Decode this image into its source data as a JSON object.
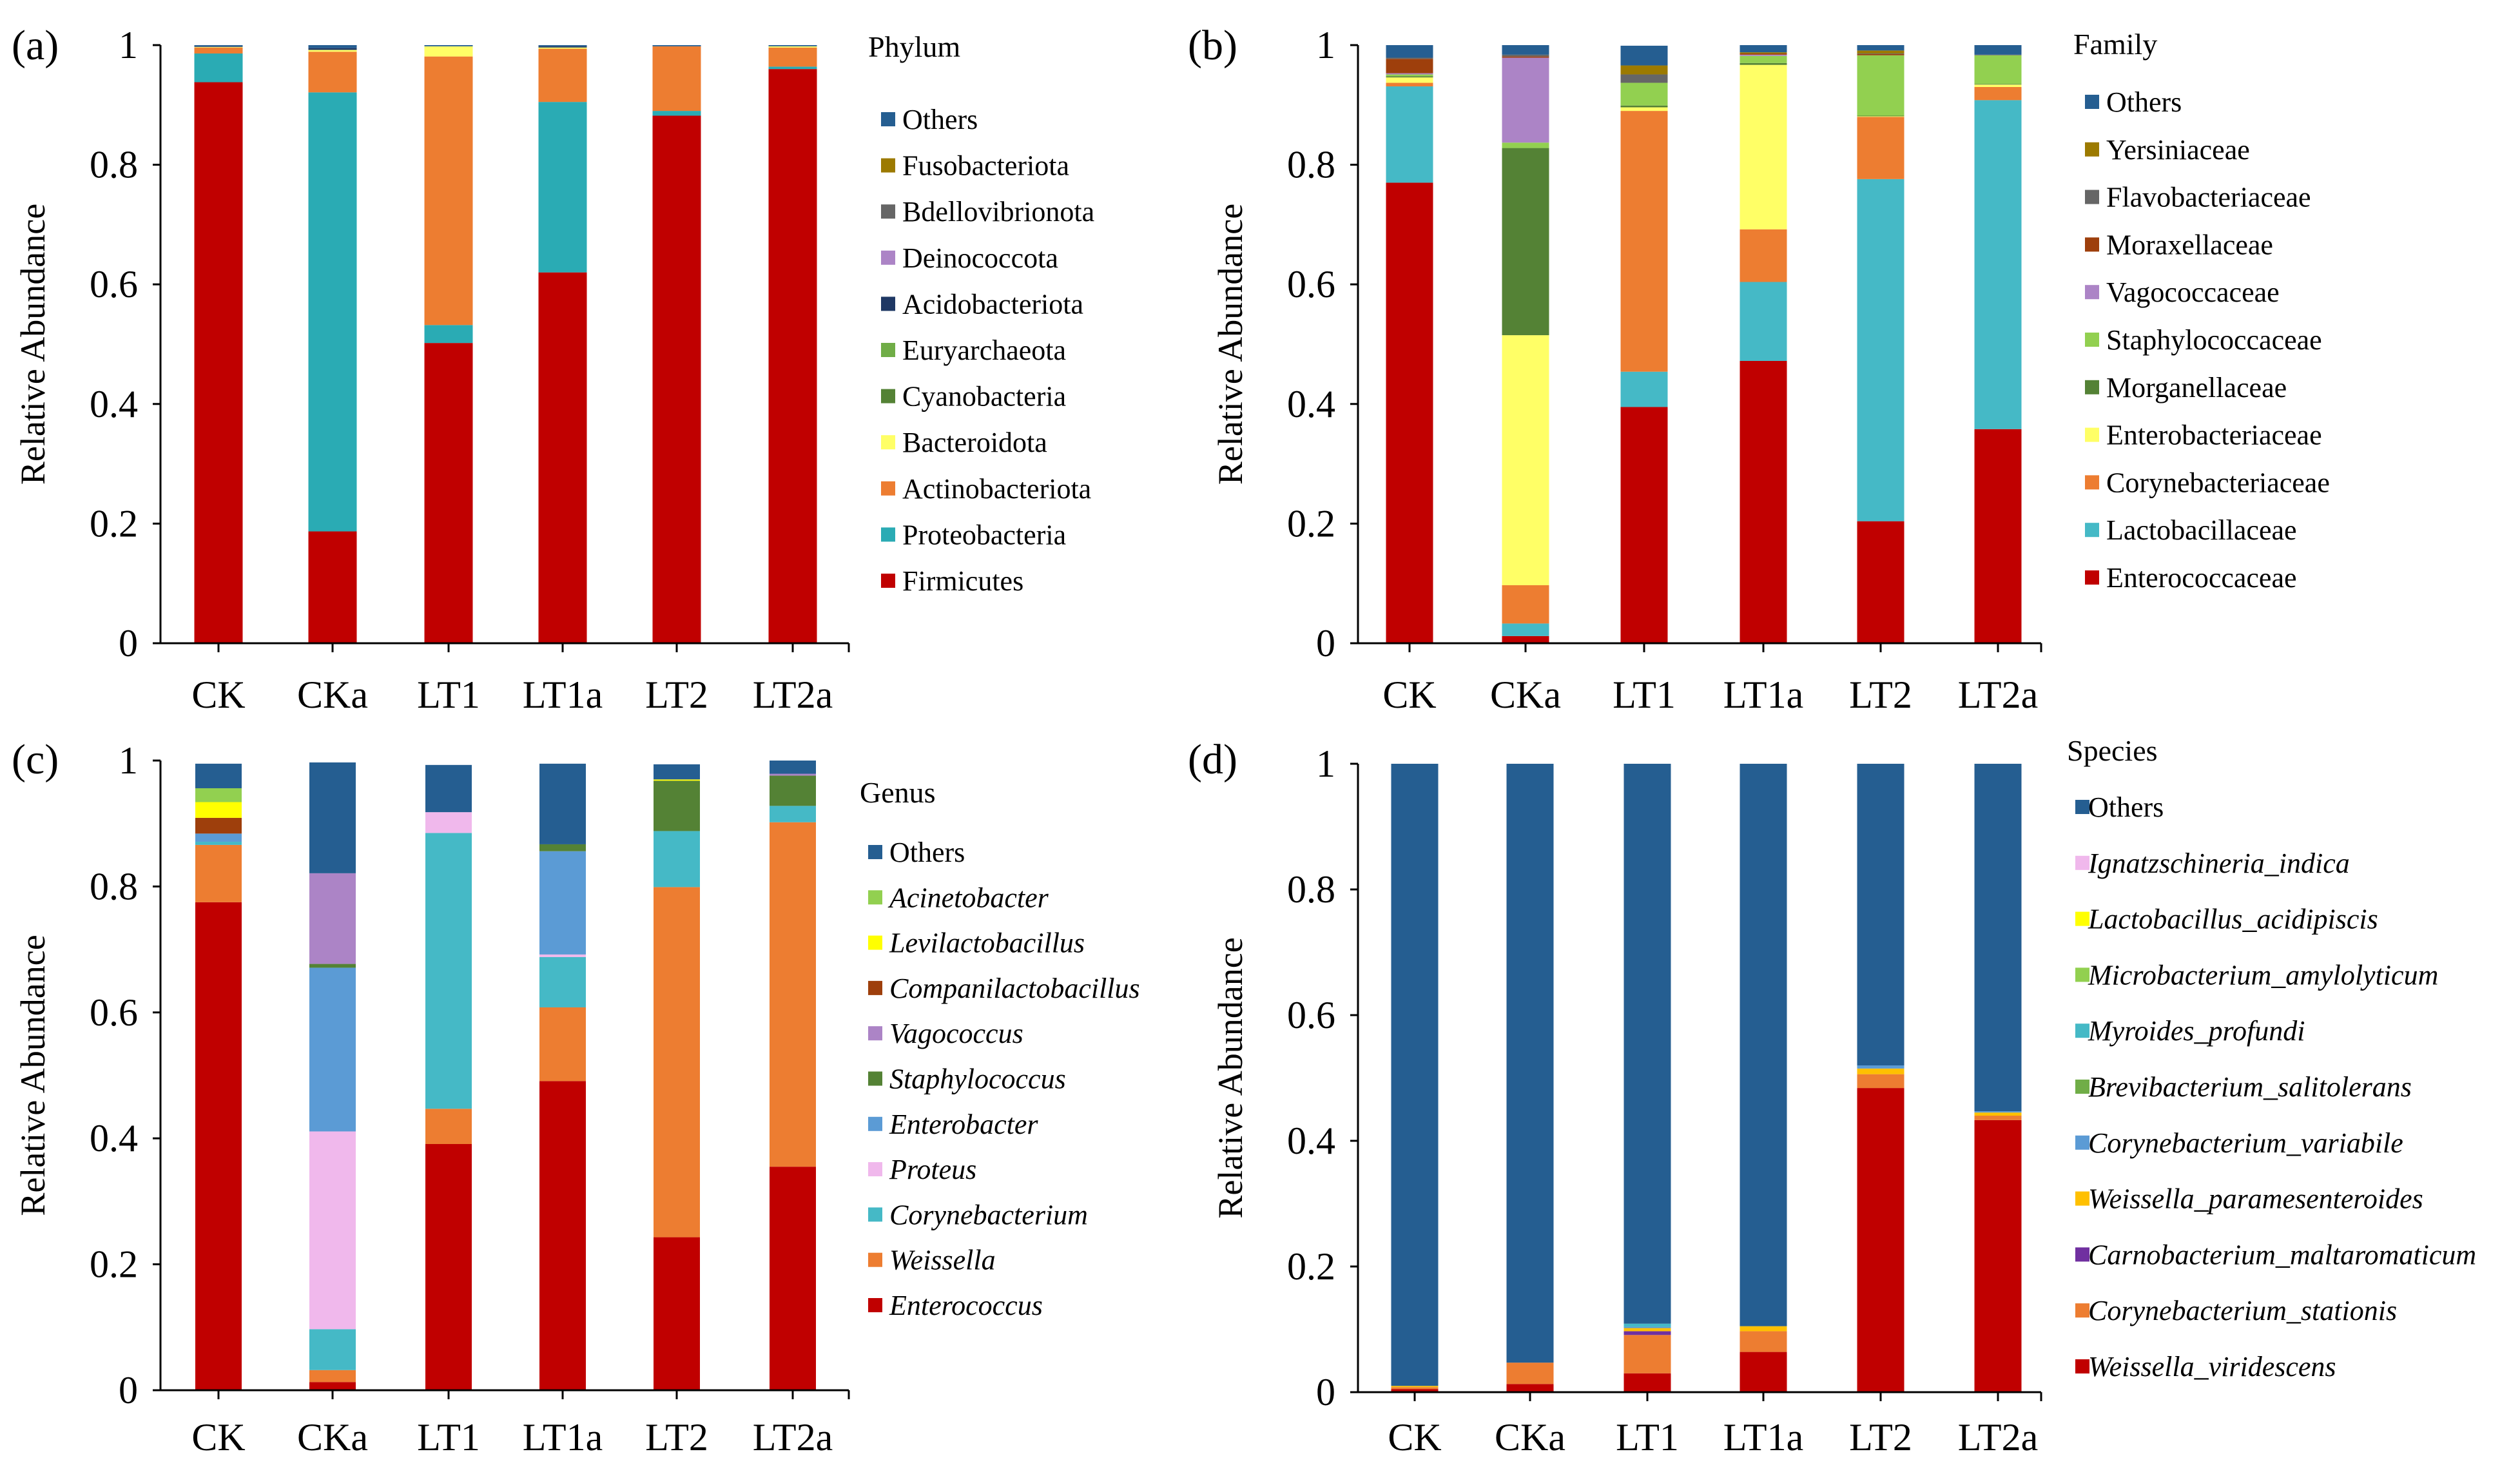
{
  "chart_data": [
    {
      "type": "bar",
      "stacked": true,
      "panel_label": "(a)",
      "legend_title": "Phylum",
      "legend_italic": false,
      "ylabel": "Relative Abundance",
      "ylim": [
        0,
        1
      ],
      "yticks": [
        "0",
        "0.2",
        "0.4",
        "0.6",
        "0.8",
        "1"
      ],
      "categories": [
        "CK",
        "CKa",
        "LT1",
        "LT1a",
        "LT2",
        "LT2a"
      ],
      "series": [
        {
          "name": "Firmicutes",
          "color": "#C00000",
          "values": [
            0.938,
            0.187,
            0.502,
            0.62,
            0.882,
            0.96
          ]
        },
        {
          "name": "Proteobacteria",
          "color": "#2AABB4",
          "values": [
            0.048,
            0.734,
            0.03,
            0.285,
            0.008,
            0.004
          ]
        },
        {
          "name": "Actinobacteriota",
          "color": "#ED7D31",
          "values": [
            0.01,
            0.068,
            0.449,
            0.089,
            0.108,
            0.032
          ]
        },
        {
          "name": "Bacteroidota",
          "color": "#FFFF66",
          "values": [
            0.001,
            0.003,
            0.017,
            0.002,
            0.0,
            0.002
          ]
        },
        {
          "name": "Cyanobacteria",
          "color": "#548235",
          "values": [
            0,
            0,
            0,
            0,
            0,
            0
          ]
        },
        {
          "name": "Euryarchaeota",
          "color": "#70AD47",
          "values": [
            0,
            0,
            0,
            0,
            0,
            0
          ]
        },
        {
          "name": "Acidobacteriota",
          "color": "#1F3864",
          "values": [
            0.001,
            0.003,
            0,
            0.002,
            0,
            0
          ]
        },
        {
          "name": "Deinococcota",
          "color": "#AC84C6",
          "values": [
            0,
            0,
            0,
            0,
            0,
            0
          ]
        },
        {
          "name": "Bdellovibrionota",
          "color": "#666666",
          "values": [
            0,
            0,
            0,
            0,
            0,
            0
          ]
        },
        {
          "name": "Fusobacteriota",
          "color": "#9C7A00",
          "values": [
            0,
            0,
            0,
            0,
            0,
            0
          ]
        },
        {
          "name": "Others",
          "color": "#255E91",
          "values": [
            0.002,
            0.005,
            0.002,
            0.002,
            0.002,
            0.002
          ]
        }
      ]
    },
    {
      "type": "bar",
      "stacked": true,
      "panel_label": "(b)",
      "legend_title": "Family",
      "legend_italic": false,
      "ylabel": "Relative Abundance",
      "ylim": [
        0,
        1
      ],
      "yticks": [
        "0",
        "0.2",
        "0.4",
        "0.6",
        "0.8",
        "1"
      ],
      "categories": [
        "CK",
        "CKa",
        "LT1",
        "LT1a",
        "LT2",
        "LT2a"
      ],
      "series": [
        {
          "name": "Enterococcaceae",
          "color": "#C00000",
          "values": [
            0.77,
            0.012,
            0.395,
            0.472,
            0.204,
            0.358
          ]
        },
        {
          "name": "Lactobacillaceae",
          "color": "#45B9C6",
          "values": [
            0.161,
            0.021,
            0.059,
            0.132,
            0.572,
            0.55
          ]
        },
        {
          "name": "Corynebacteriaceae",
          "color": "#ED7D31",
          "values": [
            0.006,
            0.064,
            0.436,
            0.088,
            0.104,
            0.022
          ]
        },
        {
          "name": "Enterobacteriaceae",
          "color": "#FFFF66",
          "values": [
            0.009,
            0.418,
            0.006,
            0.275,
            0.001,
            0.004
          ]
        },
        {
          "name": "Morganellaceae",
          "color": "#548235",
          "values": [
            0.002,
            0.313,
            0.003,
            0.003,
            0.001,
            0.001
          ]
        },
        {
          "name": "Staphylococcaceae",
          "color": "#92D050",
          "values": [
            0.003,
            0.009,
            0.038,
            0.012,
            0.101,
            0.048
          ]
        },
        {
          "name": "Vagococcaceae",
          "color": "#AC84C6",
          "values": [
            0.002,
            0.142,
            0,
            0.002,
            0,
            0
          ]
        },
        {
          "name": "Moraxellaceae",
          "color": "#9E3F0C",
          "values": [
            0.024,
            0.002,
            0,
            0.002,
            0.002,
            0
          ]
        },
        {
          "name": "Flavobacteriaceae",
          "color": "#666666",
          "values": [
            0.002,
            0.003,
            0.014,
            0,
            0.001,
            0.001
          ]
        },
        {
          "name": "Yersiniaceae",
          "color": "#9C7A00",
          "values": [
            0,
            0,
            0.015,
            0.002,
            0.005,
            0
          ]
        },
        {
          "name": "Others",
          "color": "#255E91",
          "values": [
            0.021,
            0.016,
            0.033,
            0.012,
            0.009,
            0.016
          ]
        }
      ]
    },
    {
      "type": "bar",
      "stacked": true,
      "panel_label": "(c)",
      "legend_title": "Genus",
      "legend_italic": true,
      "ylabel": "Relative Abundance",
      "ylim": [
        0,
        1
      ],
      "yticks": [
        "0",
        "0.2",
        "0.4",
        "0.6",
        "0.8",
        "1"
      ],
      "categories": [
        "CK",
        "CKa",
        "LT1",
        "LT1a",
        "LT2",
        "LT2a"
      ],
      "series": [
        {
          "name": "Enterococcus",
          "color": "#C00000",
          "values": [
            0.775,
            0.013,
            0.391,
            0.491,
            0.243,
            0.355
          ]
        },
        {
          "name": "Weissella",
          "color": "#ED7D31",
          "values": [
            0.091,
            0.019,
            0.056,
            0.117,
            0.556,
            0.547
          ]
        },
        {
          "name": "Corynebacterium",
          "color": "#45B9C6",
          "values": [
            0.005,
            0.065,
            0.438,
            0.08,
            0.089,
            0.026
          ]
        },
        {
          "name": "Proteus",
          "color": "#F0B8EC",
          "values": [
            0,
            0.314,
            0.033,
            0.004,
            0,
            0
          ]
        },
        {
          "name": "Enterobacter",
          "color": "#5B9BD5",
          "values": [
            0.013,
            0.26,
            0,
            0.164,
            0,
            0
          ]
        },
        {
          "name": "Staphylococcus",
          "color": "#548235",
          "values": [
            0,
            0.006,
            0,
            0.011,
            0.08,
            0.048
          ]
        },
        {
          "name": "Vagococcus",
          "color": "#AC84C6",
          "values": [
            0,
            0.144,
            0,
            0,
            0,
            0.003
          ]
        },
        {
          "name": "Companilactobacillus",
          "color": "#9E3F0C",
          "values": [
            0.025,
            0,
            0,
            0,
            0,
            0
          ]
        },
        {
          "name": "Levilactobacillus",
          "color": "#FFFF00",
          "values": [
            0.025,
            0,
            0,
            0,
            0.002,
            0
          ]
        },
        {
          "name": "Acinetobacter",
          "color": "#92D050",
          "values": [
            0.022,
            0,
            0,
            0,
            0,
            0
          ]
        },
        {
          "name": "Others",
          "color": "#255E91",
          "values": [
            0.039,
            0.176,
            0.075,
            0.128,
            0.024,
            0.021
          ]
        }
      ]
    },
    {
      "type": "bar",
      "stacked": true,
      "panel_label": "(d)",
      "legend_title": "Species",
      "legend_italic": true,
      "ylabel": "Relative Abundance",
      "ylim": [
        0,
        1
      ],
      "yticks": [
        "0",
        "0.2",
        "0.4",
        "0.6",
        "0.8",
        "1"
      ],
      "categories": [
        "CK",
        "CKa",
        "LT1",
        "LT1a",
        "LT2",
        "LT2a"
      ],
      "series": [
        {
          "name": "Weissella_viridescens",
          "color": "#C00000",
          "values": [
            0.005,
            0.013,
            0.03,
            0.064,
            0.484,
            0.433
          ]
        },
        {
          "name": "Corynebacterium_stationis",
          "color": "#ED7D31",
          "values": [
            0.003,
            0.034,
            0.061,
            0.033,
            0.022,
            0.007
          ]
        },
        {
          "name": "Carnobacterium_maltaromaticum",
          "color": "#7030A0",
          "values": [
            0,
            0,
            0.006,
            0,
            0,
            0
          ]
        },
        {
          "name": "Weissella_paramesenteroides",
          "color": "#FFC000",
          "values": [
            0.002,
            0,
            0.005,
            0.008,
            0.009,
            0.005
          ]
        },
        {
          "name": "Corynebacterium_variabile",
          "color": "#5B9BD5",
          "values": [
            0,
            0,
            0.002,
            0,
            0.005,
            0.002
          ]
        },
        {
          "name": "Brevibacterium_salitolerans",
          "color": "#70AD47",
          "values": [
            0,
            0,
            0,
            0,
            0,
            0
          ]
        },
        {
          "name": "Myroides_profundi",
          "color": "#45B9C6",
          "values": [
            0,
            0,
            0.005,
            0,
            0,
            0
          ]
        },
        {
          "name": "Microbacterium_amylolyticum",
          "color": "#92D050",
          "values": [
            0,
            0,
            0,
            0,
            0,
            0
          ]
        },
        {
          "name": "Lactobacillus_acidipiscis",
          "color": "#FFFF00",
          "values": [
            0,
            0,
            0,
            0,
            0,
            0
          ]
        },
        {
          "name": "Ignatzschineria_indica",
          "color": "#F0B8EC",
          "values": [
            0,
            0,
            0,
            0,
            0,
            0
          ]
        },
        {
          "name": "Others",
          "color": "#255E91",
          "values": [
            0.99,
            0.953,
            0.891,
            0.895,
            0.48,
            0.553
          ]
        }
      ]
    }
  ]
}
